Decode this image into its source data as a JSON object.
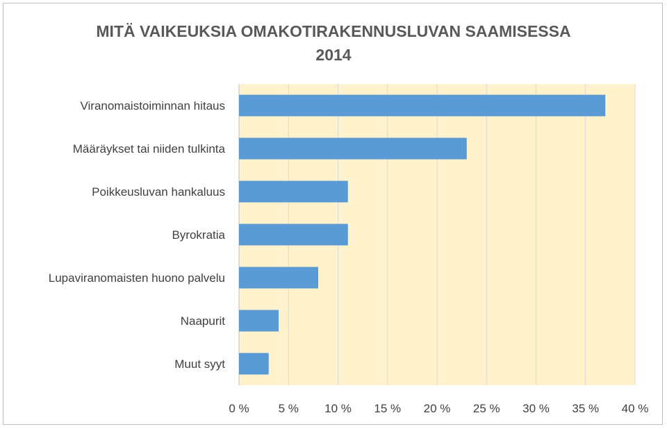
{
  "chart_data": {
    "type": "bar",
    "orientation": "horizontal",
    "title": "MITÄ VAIKEUKSIA OMAKOTIRAKENNUSLUVAN SAAMISESSA",
    "subtitle": "2014",
    "categories": [
      "Viranomaistoiminnan hitaus",
      "Määräykset tai niiden tulkinta",
      "Poikkeusluvan hankaluus",
      "Byrokratia",
      "Lupaviranomaisten huono palvelu",
      "Naapurit",
      "Muut syyt"
    ],
    "values": [
      37,
      23,
      11,
      11,
      8,
      4,
      3
    ],
    "xlim": [
      0,
      40
    ],
    "xticks": [
      0,
      5,
      10,
      15,
      20,
      25,
      30,
      35,
      40
    ],
    "xtick_labels": [
      "0 %",
      "5 %",
      "10 %",
      "15 %",
      "20 %",
      "25 %",
      "30 %",
      "35 %",
      "40 %"
    ],
    "grid": true,
    "bar_color": "#5b9bd5",
    "plot_background": "#fff2cc"
  }
}
